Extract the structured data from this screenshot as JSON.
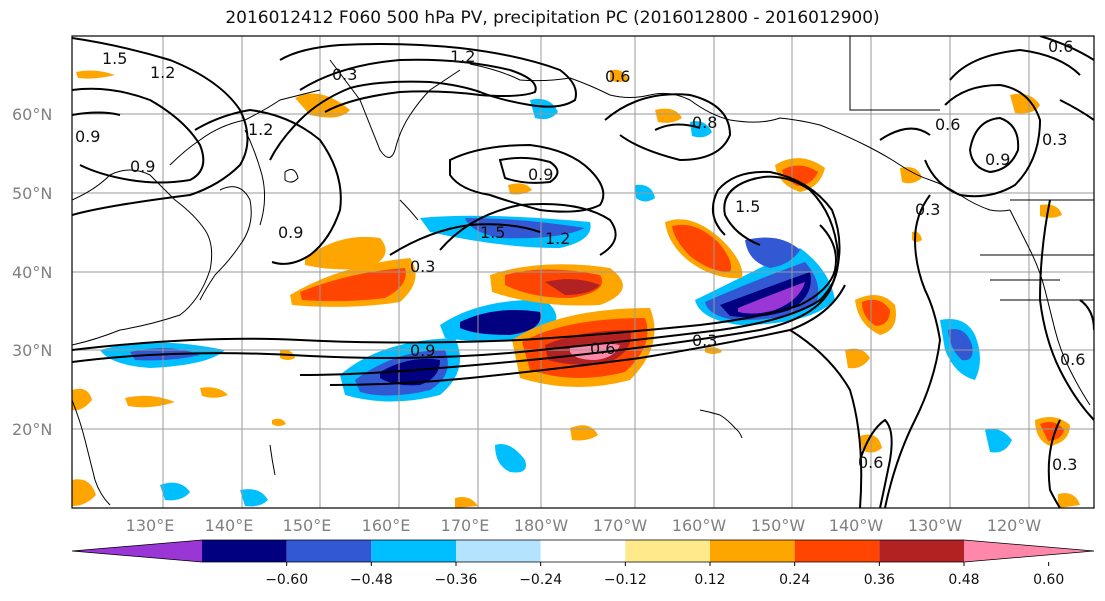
{
  "title": "2016012412 F060 500 hPa PV, precipitation PC (2016012800 - 2016012900)",
  "lat_labels": [
    "60°N",
    "50°N",
    "40°N",
    "30°N",
    "20°N"
  ],
  "lon_labels": [
    "130°E",
    "140°E",
    "150°E",
    "160°E",
    "170°E",
    "180°W",
    "170°W",
    "160°W",
    "150°W",
    "140°W",
    "130°W",
    "120°W"
  ],
  "colorbar": {
    "colors": [
      "#9a35d6",
      "#000080",
      "#3358d4",
      "#00bfff",
      "#b3e3ff",
      "#ffffff",
      "#ffe98a",
      "#ffa500",
      "#ff4500",
      "#b22222",
      "#ff88aa"
    ],
    "tick_labels": [
      "−0.60",
      "−0.48",
      "−0.36",
      "−0.24",
      "−0.12",
      "0.12",
      "0.24",
      "0.36",
      "0.48",
      "0.60"
    ]
  },
  "contour_labels": [
    "1.5",
    "1.2",
    "0.3",
    "1.2",
    "0.6",
    "0.9",
    "1.2",
    "0.9",
    "0.9",
    "0.8",
    "0.9",
    "1.5",
    "1.2",
    "0.3",
    "0.9",
    "0.6",
    "0.3",
    "1.5",
    "0.9",
    "0.6",
    "0.3",
    "0.3",
    "0.6",
    "0.3",
    "0.6",
    "0.6"
  ]
}
